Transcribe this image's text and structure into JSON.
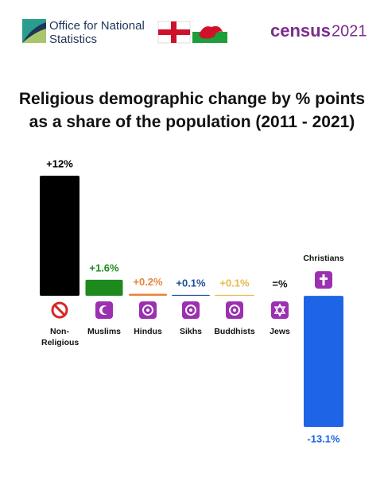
{
  "header": {
    "org_name": "Office for National Statistics",
    "census_word": "census",
    "census_year": "2021"
  },
  "chart_data": {
    "type": "bar",
    "title": "Religious demographic change by % points as a share of the population (2011 - 2021)",
    "categories": [
      "Non-Religious",
      "Muslims",
      "Hindus",
      "Sikhs",
      "Buddhists",
      "Jews",
      "Christians"
    ],
    "values": [
      12,
      1.6,
      0.2,
      0.1,
      0.1,
      0,
      -13.1
    ],
    "value_labels": [
      "+12%",
      "+1.6%",
      "+0.2%",
      "+0.1%",
      "+0.1%",
      "=%",
      "-13.1%"
    ],
    "colors": [
      "#000000",
      "#1e8a1e",
      "#e8843a",
      "#1f4e99",
      "#e8b84a",
      "#111111",
      "#1e64e6"
    ],
    "ylim": [
      -13.1,
      12
    ]
  }
}
